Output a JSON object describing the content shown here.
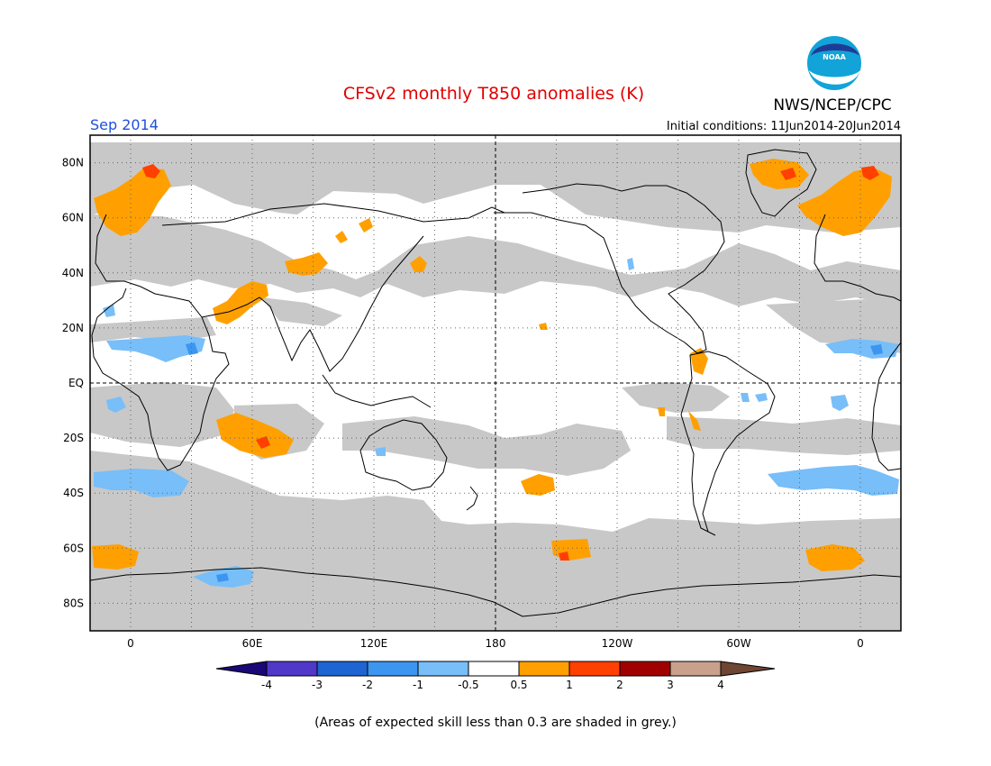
{
  "header": {
    "title": "CFSv2 monthly T850 anomalies (K)",
    "month": "Sep 2014",
    "init": "Initial conditions: 11Jun2014-20Jun2014",
    "agency": "NWS/NCEP/CPC",
    "logo_text": "NOAA"
  },
  "map": {
    "lat_labels": [
      "80N",
      "60N",
      "40N",
      "20N",
      "EQ",
      "20S",
      "40S",
      "60S",
      "80S"
    ],
    "lon_labels": [
      "0",
      "60E",
      "120E",
      "180",
      "120W",
      "60W",
      "0"
    ]
  },
  "colorbar": {
    "labels": [
      "-4",
      "-3",
      "-2",
      "-1",
      "-0.5",
      "0.5",
      "1",
      "2",
      "3",
      "4"
    ],
    "colors": [
      "#1a0878",
      "#5038c8",
      "#1e64d2",
      "#3c96f0",
      "#78bef8",
      "#ffffff",
      "#ffa000",
      "#ff4000",
      "#a00000",
      "#c8a08c",
      "#6e4632"
    ]
  },
  "colors": {
    "skill_grey": "#c8c8c8",
    "title": "#e00000",
    "month": "#1e50dc"
  },
  "footnote": "(Areas of expected skill less than 0.3 are shaded in grey.)"
}
